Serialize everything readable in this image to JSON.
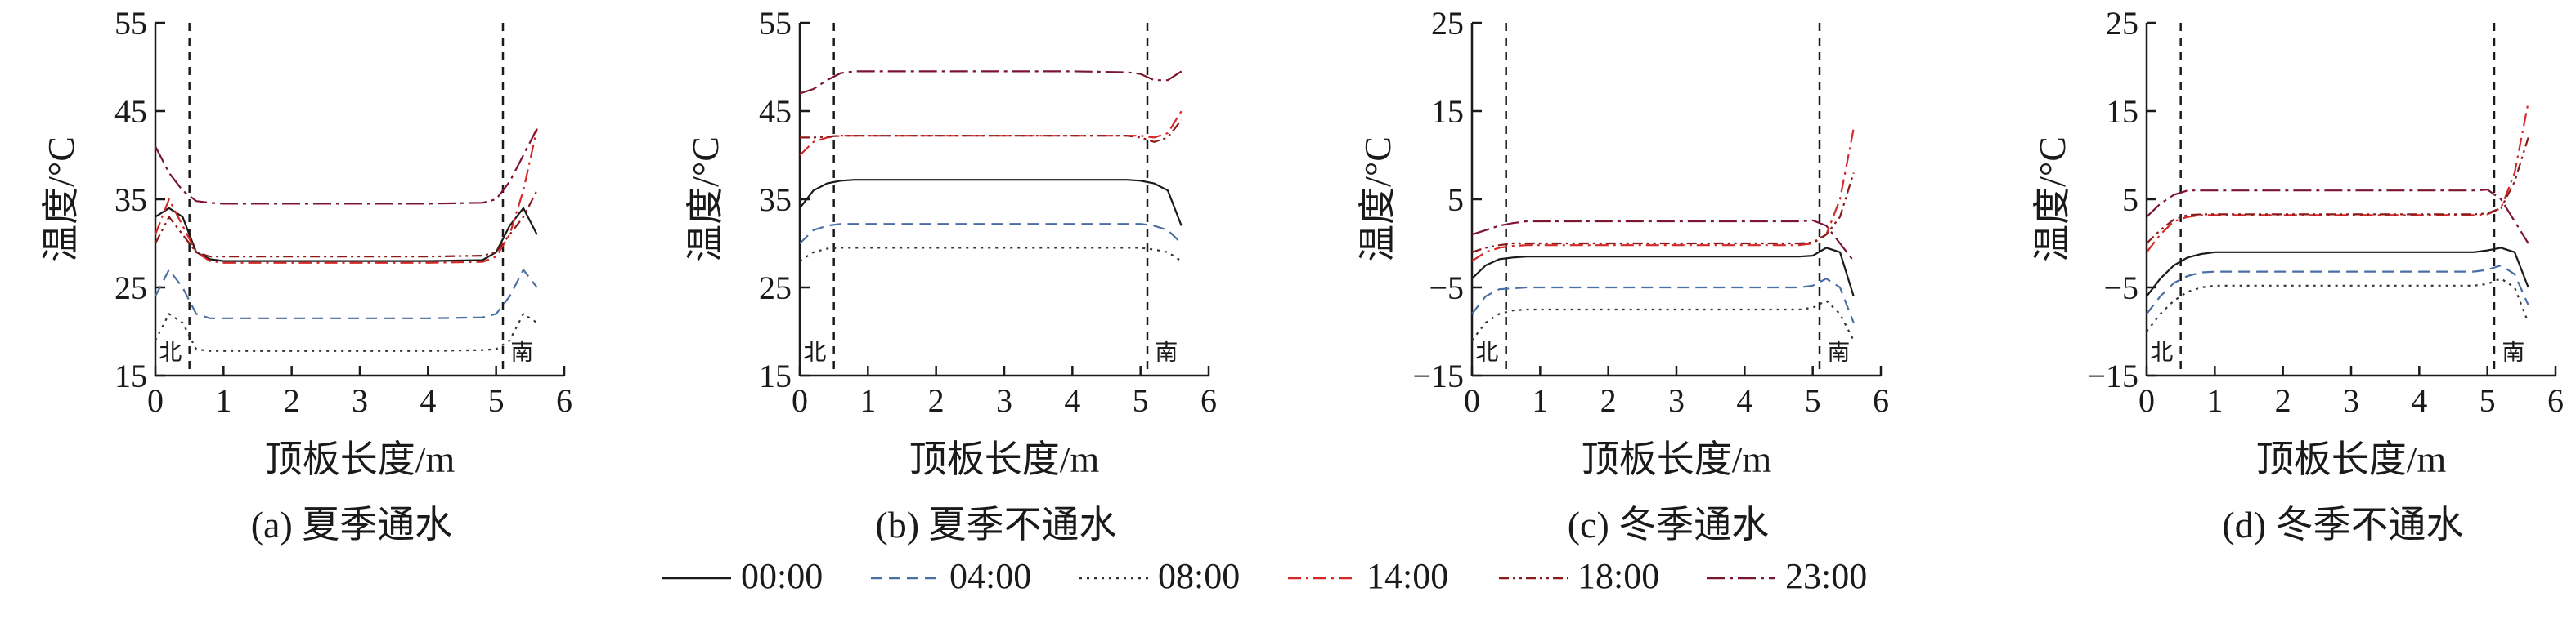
{
  "figure": {
    "series_styles": [
      {
        "name": "00:00",
        "color": "#1a1a1a",
        "dash": "none"
      },
      {
        "name": "04:00",
        "color": "#4a6fa5",
        "dash": "dashed"
      },
      {
        "name": "08:00",
        "color": "#333333",
        "dash": "dotted"
      },
      {
        "name": "14:00",
        "color": "#d62728",
        "dash": "dash-dot"
      },
      {
        "name": "18:00",
        "color": "#8b1a1a",
        "dash": "dash-dot-dot"
      },
      {
        "name": "23:00",
        "color": "#7b1530",
        "dash": "long-dash-dot"
      }
    ]
  },
  "chart_data": [
    {
      "type": "line",
      "caption": "(a) 夏季通水",
      "xlabel": "顶板长度/m",
      "ylabel": "温度/°C",
      "xlim": [
        0,
        6
      ],
      "ylim": [
        15,
        55
      ],
      "xticks": [
        0,
        1,
        2,
        3,
        4,
        5,
        6
      ],
      "yticks": [
        15,
        25,
        35,
        45,
        55
      ],
      "vlines": [
        0.5,
        5.1
      ],
      "annotations": [
        {
          "text": "北",
          "x": 0.22,
          "y": 16.8
        },
        {
          "text": "南",
          "x": 5.38,
          "y": 16.8
        }
      ],
      "x": [
        0,
        0.2,
        0.4,
        0.6,
        0.8,
        1,
        2,
        3,
        4,
        4.8,
        5,
        5.2,
        5.4,
        5.6
      ],
      "series": [
        {
          "name": "00:00",
          "values": [
            33,
            34,
            33,
            29,
            28.2,
            28,
            28,
            28,
            28,
            28.1,
            29,
            32,
            34,
            31
          ]
        },
        {
          "name": "04:00",
          "values": [
            24,
            27,
            25,
            22,
            21.5,
            21.5,
            21.5,
            21.5,
            21.5,
            21.6,
            22,
            24,
            27,
            25
          ]
        },
        {
          "name": "08:00",
          "values": [
            19,
            22,
            21,
            18,
            17.8,
            17.8,
            17.8,
            17.8,
            17.8,
            17.9,
            18,
            19,
            22,
            21
          ]
        },
        {
          "name": "14:00",
          "values": [
            31,
            35,
            32,
            29,
            28,
            27.8,
            27.8,
            27.8,
            27.8,
            27.9,
            28.5,
            31,
            36,
            43
          ]
        },
        {
          "name": "18:00",
          "values": [
            30,
            33,
            31,
            29,
            28.5,
            28.5,
            28.5,
            28.5,
            28.5,
            28.6,
            29,
            31,
            33,
            36
          ]
        },
        {
          "name": "23:00",
          "values": [
            41,
            38,
            36,
            34.8,
            34.6,
            34.5,
            34.5,
            34.5,
            34.5,
            34.6,
            35,
            37,
            40,
            43
          ]
        }
      ]
    },
    {
      "type": "line",
      "caption": "(b) 夏季不通水",
      "xlabel": "顶板长度/m",
      "ylabel": "温度/°C",
      "xlim": [
        0,
        6
      ],
      "ylim": [
        15,
        55
      ],
      "xticks": [
        0,
        1,
        2,
        3,
        4,
        5,
        6
      ],
      "yticks": [
        15,
        25,
        35,
        45,
        55
      ],
      "vlines": [
        0.5,
        5.1
      ],
      "annotations": [
        {
          "text": "北",
          "x": 0.22,
          "y": 16.8
        },
        {
          "text": "南",
          "x": 5.38,
          "y": 16.8
        }
      ],
      "x": [
        0,
        0.2,
        0.4,
        0.6,
        0.8,
        1,
        2,
        3,
        4,
        4.8,
        5,
        5.2,
        5.4,
        5.6
      ],
      "series": [
        {
          "name": "00:00",
          "values": [
            34,
            36,
            36.8,
            37.1,
            37.2,
            37.2,
            37.2,
            37.2,
            37.2,
            37.2,
            37.1,
            36.8,
            36,
            32
          ]
        },
        {
          "name": "04:00",
          "values": [
            30,
            31.5,
            32,
            32.2,
            32.2,
            32.2,
            32.2,
            32.2,
            32.2,
            32.2,
            32.2,
            32,
            31.5,
            30
          ]
        },
        {
          "name": "08:00",
          "values": [
            28,
            29,
            29.4,
            29.5,
            29.5,
            29.5,
            29.5,
            29.5,
            29.5,
            29.5,
            29.5,
            29.3,
            29,
            28
          ]
        },
        {
          "name": "14:00",
          "values": [
            40,
            41.5,
            42,
            42.2,
            42.2,
            42.2,
            42.2,
            42.2,
            42.2,
            42.2,
            42.2,
            42,
            42.5,
            45
          ]
        },
        {
          "name": "18:00",
          "values": [
            42,
            42,
            42.1,
            42.2,
            42.2,
            42.2,
            42.2,
            42.2,
            42.2,
            42.2,
            42,
            41.5,
            42,
            44
          ]
        },
        {
          "name": "23:00",
          "values": [
            47,
            47.5,
            48.5,
            49.3,
            49.5,
            49.5,
            49.5,
            49.5,
            49.5,
            49.4,
            49.2,
            48.5,
            48.5,
            49.5
          ]
        }
      ]
    },
    {
      "type": "line",
      "caption": "(c) 冬季通水",
      "xlabel": "顶板长度/m",
      "ylabel": "温度/°C",
      "xlim": [
        0,
        6
      ],
      "ylim": [
        -15,
        25
      ],
      "xticks": [
        0,
        1,
        2,
        3,
        4,
        5,
        6
      ],
      "yticks": [
        -15,
        -5,
        5,
        15,
        25
      ],
      "vlines": [
        0.5,
        5.1
      ],
      "annotations": [
        {
          "text": "北",
          "x": 0.22,
          "y": -13.2
        },
        {
          "text": "南",
          "x": 5.38,
          "y": -13.2
        }
      ],
      "x": [
        0,
        0.2,
        0.4,
        0.6,
        0.8,
        1,
        2,
        3,
        4,
        4.8,
        5,
        5.2,
        5.4,
        5.6
      ],
      "series": [
        {
          "name": "00:00",
          "values": [
            -4,
            -2.5,
            -1.8,
            -1.6,
            -1.5,
            -1.5,
            -1.5,
            -1.5,
            -1.5,
            -1.5,
            -1.4,
            -0.5,
            -1,
            -6
          ]
        },
        {
          "name": "04:00",
          "values": [
            -8,
            -6,
            -5.2,
            -5.1,
            -5,
            -5,
            -5,
            -5,
            -5,
            -5,
            -4.8,
            -4,
            -5,
            -9
          ]
        },
        {
          "name": "08:00",
          "values": [
            -11,
            -9,
            -8,
            -7.6,
            -7.5,
            -7.5,
            -7.5,
            -7.5,
            -7.5,
            -7.5,
            -7.3,
            -6.5,
            -8,
            -11
          ]
        },
        {
          "name": "14:00",
          "values": [
            -2,
            -1,
            -0.5,
            -0.3,
            -0.2,
            -0.2,
            -0.2,
            -0.2,
            -0.2,
            -0.2,
            0,
            1,
            5,
            13
          ]
        },
        {
          "name": "18:00",
          "values": [
            -1,
            -0.5,
            -0.2,
            0,
            0,
            0,
            0,
            0,
            0,
            0,
            0.1,
            1,
            3,
            8
          ]
        },
        {
          "name": "23:00",
          "values": [
            1,
            1.5,
            2,
            2.3,
            2.5,
            2.5,
            2.5,
            2.5,
            2.5,
            2.5,
            2.6,
            2,
            0,
            -2
          ]
        }
      ]
    },
    {
      "type": "line",
      "caption": "(d) 冬季不通水",
      "xlabel": "顶板长度/m",
      "ylabel": "温度/°C",
      "xlim": [
        0,
        6
      ],
      "ylim": [
        -15,
        25
      ],
      "xticks": [
        0,
        1,
        2,
        3,
        4,
        5,
        6
      ],
      "yticks": [
        -15,
        -5,
        5,
        15,
        25
      ],
      "vlines": [
        0.5,
        5.1
      ],
      "annotations": [
        {
          "text": "北",
          "x": 0.22,
          "y": -13.2
        },
        {
          "text": "南",
          "x": 5.38,
          "y": -13.2
        }
      ],
      "x": [
        0,
        0.2,
        0.4,
        0.6,
        0.8,
        1,
        2,
        3,
        4,
        4.8,
        5,
        5.2,
        5.4,
        5.6
      ],
      "series": [
        {
          "name": "00:00",
          "values": [
            -6,
            -4,
            -2.5,
            -1.6,
            -1.2,
            -1,
            -1,
            -1,
            -1,
            -1,
            -0.8,
            -0.5,
            -1,
            -5
          ]
        },
        {
          "name": "04:00",
          "values": [
            -8,
            -6,
            -4.5,
            -3.7,
            -3.3,
            -3.2,
            -3.2,
            -3.2,
            -3.2,
            -3.2,
            -3,
            -2.5,
            -3.5,
            -7
          ]
        },
        {
          "name": "08:00",
          "values": [
            -10,
            -8,
            -6.5,
            -5.5,
            -5,
            -4.8,
            -4.8,
            -4.8,
            -4.8,
            -4.8,
            -4.6,
            -4,
            -5,
            -9
          ]
        },
        {
          "name": "14:00",
          "values": [
            -1,
            1,
            2.5,
            3,
            3.2,
            3.2,
            3.2,
            3.2,
            3.2,
            3.2,
            3.3,
            4,
            8,
            16
          ]
        },
        {
          "name": "18:00",
          "values": [
            0,
            1.5,
            2.7,
            3.2,
            3.3,
            3.3,
            3.3,
            3.3,
            3.3,
            3.3,
            3.4,
            4,
            7,
            12
          ]
        },
        {
          "name": "23:00",
          "values": [
            3,
            4.5,
            5.5,
            6,
            6,
            6,
            6,
            6,
            6,
            6,
            6.1,
            5,
            2.5,
            0
          ]
        }
      ]
    }
  ]
}
